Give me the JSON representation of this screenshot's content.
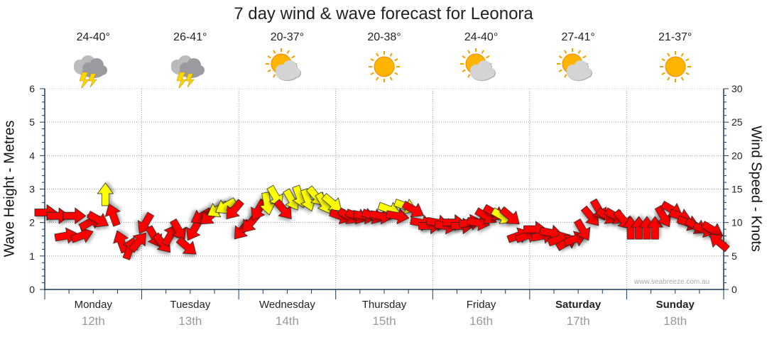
{
  "title": "7 day wind & wave forecast for Leonora",
  "watermark": "www.seabreeze.com.au",
  "days": [
    {
      "name": "Monday",
      "date": "12th",
      "temp": "24-40°",
      "icon": "storm-icon",
      "bold": false
    },
    {
      "name": "Tuesday",
      "date": "13th",
      "temp": "26-41°",
      "icon": "storm-icon",
      "bold": false
    },
    {
      "name": "Wednesday",
      "date": "14th",
      "temp": "20-37°",
      "icon": "partly-cloudy-icon",
      "bold": false
    },
    {
      "name": "Thursday",
      "date": "15th",
      "temp": "20-38°",
      "icon": "sunny-icon",
      "bold": false
    },
    {
      "name": "Friday",
      "date": "16th",
      "temp": "24-40°",
      "icon": "partly-cloudy-icon",
      "bold": false
    },
    {
      "name": "Saturday",
      "date": "17th",
      "temp": "27-41°",
      "icon": "partly-cloudy-icon",
      "bold": true
    },
    {
      "name": "Sunday",
      "date": "18th",
      "temp": "21-37°",
      "icon": "sunny-icon",
      "bold": true
    }
  ],
  "colors": {
    "strong": "#ff0000",
    "moderate": "#ffff00",
    "grid": "#999999",
    "axis": "#1a3a5a"
  },
  "chart_data": {
    "type": "wind-arrows",
    "title": "7 day wind & wave forecast for Leonora",
    "ylabel_left": "Wave Height - Metres",
    "ylabel_right": "Wind Speed - Knots",
    "left_ticks": [
      "0",
      "1",
      "2",
      "3",
      "4",
      "5",
      "6"
    ],
    "right_ticks": [
      "0",
      "5",
      "10",
      "15",
      "20",
      "25",
      "30"
    ],
    "ylim_left": [
      0,
      6
    ],
    "ylim_right": [
      0,
      30
    ],
    "x_unit": "hours from Monday 00:00",
    "xlim": [
      0,
      168
    ],
    "wind_series": [
      {
        "t": 0,
        "knots": 11.5,
        "dir": 270,
        "color": "red"
      },
      {
        "t": 3,
        "knots": 11,
        "dir": 270,
        "color": "red"
      },
      {
        "t": 5,
        "knots": 8,
        "dir": 260,
        "color": "red"
      },
      {
        "t": 7,
        "knots": 11,
        "dir": 270,
        "color": "red"
      },
      {
        "t": 9,
        "knots": 8,
        "dir": 250,
        "color": "red"
      },
      {
        "t": 11,
        "knots": 10,
        "dir": 240,
        "color": "red"
      },
      {
        "t": 13,
        "knots": 10.5,
        "dir": 300,
        "color": "red"
      },
      {
        "t": 15,
        "knots": 14,
        "dir": 180,
        "color": "yellow"
      },
      {
        "t": 17,
        "knots": 11,
        "dir": 160,
        "color": "red"
      },
      {
        "t": 19,
        "knots": 7,
        "dir": 160,
        "color": "red"
      },
      {
        "t": 21,
        "knots": 6,
        "dir": 200,
        "color": "red"
      },
      {
        "t": 23,
        "knots": 7,
        "dir": 220,
        "color": "red"
      },
      {
        "t": 25,
        "knots": 10,
        "dir": 30,
        "color": "red"
      },
      {
        "t": 27,
        "knots": 8,
        "dir": 330,
        "color": "red"
      },
      {
        "t": 29,
        "knots": 7,
        "dir": 320,
        "color": "red"
      },
      {
        "t": 31,
        "knots": 8,
        "dir": 210,
        "color": "red"
      },
      {
        "t": 33,
        "knots": 9,
        "dir": 330,
        "color": "red"
      },
      {
        "t": 35,
        "knots": 6.5,
        "dir": 310,
        "color": "red"
      },
      {
        "t": 37,
        "knots": 9,
        "dir": 30,
        "color": "red"
      },
      {
        "t": 39,
        "knots": 11,
        "dir": 60,
        "color": "red"
      },
      {
        "t": 41,
        "knots": 11,
        "dir": 50,
        "color": "red"
      },
      {
        "t": 43,
        "knots": 12,
        "dir": 60,
        "color": "yellow"
      },
      {
        "t": 45,
        "knots": 12.5,
        "dir": 60,
        "color": "yellow"
      },
      {
        "t": 47,
        "knots": 12,
        "dir": 40,
        "color": "red"
      },
      {
        "t": 49,
        "knots": 9,
        "dir": 40,
        "color": "red"
      },
      {
        "t": 51,
        "knots": 10,
        "dir": 40,
        "color": "red"
      },
      {
        "t": 53,
        "knots": 12,
        "dir": 30,
        "color": "red"
      },
      {
        "t": 55,
        "knots": 13,
        "dir": 350,
        "color": "yellow"
      },
      {
        "t": 57,
        "knots": 14,
        "dir": 330,
        "color": "yellow"
      },
      {
        "t": 59,
        "knots": 12,
        "dir": 320,
        "color": "red"
      },
      {
        "t": 61,
        "knots": 13.5,
        "dir": 330,
        "color": "yellow"
      },
      {
        "t": 63,
        "knots": 14,
        "dir": 340,
        "color": "yellow"
      },
      {
        "t": 65,
        "knots": 13.5,
        "dir": 340,
        "color": "yellow"
      },
      {
        "t": 67,
        "knots": 14,
        "dir": 320,
        "color": "yellow"
      },
      {
        "t": 69,
        "knots": 13,
        "dir": 330,
        "color": "yellow"
      },
      {
        "t": 71,
        "knots": 13,
        "dir": 310,
        "color": "yellow"
      },
      {
        "t": 73,
        "knots": 11,
        "dir": 290,
        "color": "red"
      },
      {
        "t": 75,
        "knots": 11,
        "dir": 300,
        "color": "red"
      },
      {
        "t": 77,
        "knots": 11,
        "dir": 290,
        "color": "red"
      },
      {
        "t": 79,
        "knots": 11,
        "dir": 280,
        "color": "red"
      },
      {
        "t": 81,
        "knots": 11,
        "dir": 290,
        "color": "red"
      },
      {
        "t": 83,
        "knots": 11,
        "dir": 280,
        "color": "red"
      },
      {
        "t": 85,
        "knots": 12,
        "dir": 290,
        "color": "yellow"
      },
      {
        "t": 87,
        "knots": 11,
        "dir": 280,
        "color": "red"
      },
      {
        "t": 89,
        "knots": 12.5,
        "dir": 290,
        "color": "yellow"
      },
      {
        "t": 91,
        "knots": 12,
        "dir": 300,
        "color": "red"
      },
      {
        "t": 93,
        "knots": 10,
        "dir": 280,
        "color": "red"
      },
      {
        "t": 95,
        "knots": 9.5,
        "dir": 270,
        "color": "red"
      },
      {
        "t": 97,
        "knots": 10,
        "dir": 280,
        "color": "red"
      },
      {
        "t": 99,
        "knots": 9.5,
        "dir": 280,
        "color": "red"
      },
      {
        "t": 101,
        "knots": 10,
        "dir": 270,
        "color": "red"
      },
      {
        "t": 103,
        "knots": 9.5,
        "dir": 270,
        "color": "red"
      },
      {
        "t": 105,
        "knots": 10,
        "dir": 260,
        "color": "red"
      },
      {
        "t": 107,
        "knots": 10,
        "dir": 280,
        "color": "red"
      },
      {
        "t": 109,
        "knots": 11,
        "dir": 300,
        "color": "red"
      },
      {
        "t": 111,
        "knots": 11.5,
        "dir": 300,
        "color": "red"
      },
      {
        "t": 113,
        "knots": 11,
        "dir": 300,
        "color": "yellow"
      },
      {
        "t": 115,
        "knots": 11,
        "dir": 310,
        "color": "red"
      },
      {
        "t": 117,
        "knots": 8,
        "dir": 250,
        "color": "red"
      },
      {
        "t": 119,
        "knots": 8,
        "dir": 250,
        "color": "red"
      },
      {
        "t": 121,
        "knots": 9,
        "dir": 270,
        "color": "red"
      },
      {
        "t": 123,
        "knots": 8,
        "dir": 260,
        "color": "red"
      },
      {
        "t": 125,
        "knots": 8.5,
        "dir": 280,
        "color": "red"
      },
      {
        "t": 127,
        "knots": 7.5,
        "dir": 250,
        "color": "red"
      },
      {
        "t": 129,
        "knots": 7,
        "dir": 240,
        "color": "red"
      },
      {
        "t": 131,
        "knots": 7.5,
        "dir": 250,
        "color": "red"
      },
      {
        "t": 133,
        "knots": 9,
        "dir": 330,
        "color": "red"
      },
      {
        "t": 135,
        "knots": 11,
        "dir": 320,
        "color": "red"
      },
      {
        "t": 137,
        "knots": 12,
        "dir": 330,
        "color": "red"
      },
      {
        "t": 139,
        "knots": 11,
        "dir": 300,
        "color": "red"
      },
      {
        "t": 141,
        "knots": 11,
        "dir": 300,
        "color": "red"
      },
      {
        "t": 143,
        "knots": 10.5,
        "dir": 320,
        "color": "red"
      },
      {
        "t": 145,
        "knots": 9,
        "dir": 180,
        "color": "red"
      },
      {
        "t": 147,
        "knots": 9,
        "dir": 180,
        "color": "red"
      },
      {
        "t": 149,
        "knots": 9,
        "dir": 180,
        "color": "red"
      },
      {
        "t": 151,
        "knots": 9,
        "dir": 180,
        "color": "red"
      },
      {
        "t": 153,
        "knots": 11,
        "dir": 330,
        "color": "red"
      },
      {
        "t": 155,
        "knots": 12,
        "dir": 300,
        "color": "red"
      },
      {
        "t": 157,
        "knots": 11,
        "dir": 290,
        "color": "red"
      },
      {
        "t": 159,
        "knots": 10,
        "dir": 290,
        "color": "red"
      },
      {
        "t": 161,
        "knots": 9.5,
        "dir": 300,
        "color": "red"
      },
      {
        "t": 163,
        "knots": 9,
        "dir": 290,
        "color": "red"
      },
      {
        "t": 165,
        "knots": 9,
        "dir": 300,
        "color": "red"
      },
      {
        "t": 167,
        "knots": 7,
        "dir": 130,
        "color": "red"
      }
    ]
  }
}
